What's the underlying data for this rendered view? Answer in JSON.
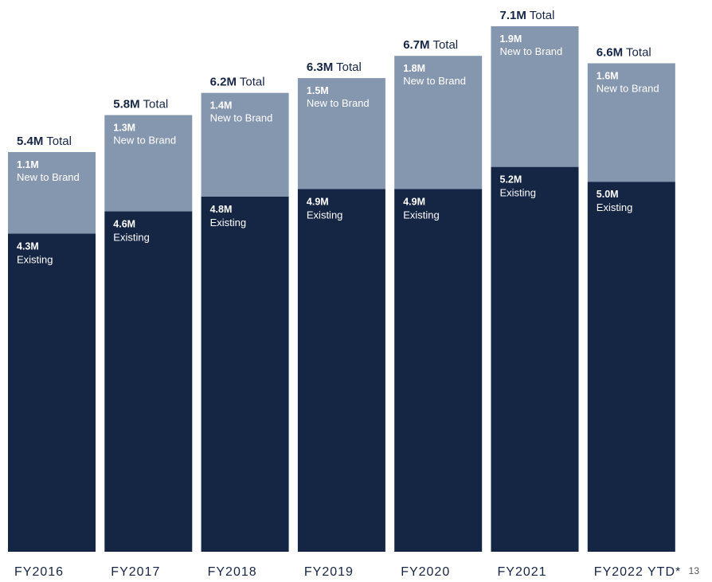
{
  "chart_data": {
    "type": "bar",
    "stacked": true,
    "categories": [
      "FY2016",
      "FY2017",
      "FY2018",
      "FY2019",
      "FY2020",
      "FY2021",
      "FY2022 YTD*"
    ],
    "series": [
      {
        "name": "Existing",
        "values": [
          4.3,
          4.6,
          4.8,
          4.9,
          4.9,
          5.2,
          5.0
        ],
        "color": "#152544"
      },
      {
        "name": "New to Brand",
        "values": [
          1.1,
          1.3,
          1.4,
          1.5,
          1.8,
          1.9,
          1.6
        ],
        "color": "#8596af"
      }
    ],
    "totals": [
      5.4,
      5.8,
      6.2,
      6.3,
      6.7,
      7.1,
      6.6
    ],
    "value_suffix": "M",
    "total_word": "Total",
    "ylim": [
      0,
      7.1
    ],
    "grid": false,
    "legend": "none"
  },
  "page_number": "13",
  "colors": {
    "existing": "#152544",
    "new_to_brand": "#8596af",
    "total_text": "#152544",
    "axis_text": "#152544"
  }
}
